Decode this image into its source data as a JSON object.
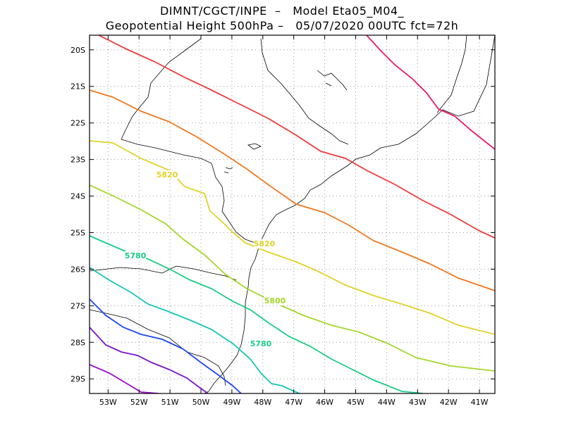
{
  "title": {
    "line1": "DIMNT/CGCT/INPE  –   Model Eta05_M04_",
    "line2": "Geopotential Height 500hPa –   05/07/2020 00UTC fct=72h"
  },
  "map": {
    "lon_range": [
      -53.6,
      -40.5
    ],
    "lat_range": [
      -29.4,
      -19.6
    ],
    "lat_ticks": [
      "20S",
      "21S",
      "22S",
      "23S",
      "24S",
      "25S",
      "26S",
      "27S",
      "28S",
      "29S"
    ],
    "lon_ticks": [
      "53W",
      "52W",
      "51W",
      "50W",
      "49W",
      "48W",
      "47W",
      "46W",
      "45W",
      "44W",
      "43W",
      "42W",
      "41W"
    ]
  },
  "contours": [
    {
      "color": "#e8186e",
      "label": ""
    },
    {
      "color": "#ee3a3a",
      "label": ""
    },
    {
      "color": "#f07820",
      "label": ""
    },
    {
      "color": "#e0d228",
      "label": "5820"
    },
    {
      "color": "#a5d62a",
      "label": "5800"
    },
    {
      "color": "#18cc88",
      "label": "5780"
    },
    {
      "color": "#14c6b4",
      "label": "5780"
    },
    {
      "color": "#1e46ee",
      "label": ""
    },
    {
      "color": "#7a14c8",
      "label": ""
    },
    {
      "color": "#9a0ac8",
      "label": ""
    }
  ],
  "contour_labels": [
    "5820",
    "5820",
    "5800",
    "5780",
    "5780"
  ]
}
